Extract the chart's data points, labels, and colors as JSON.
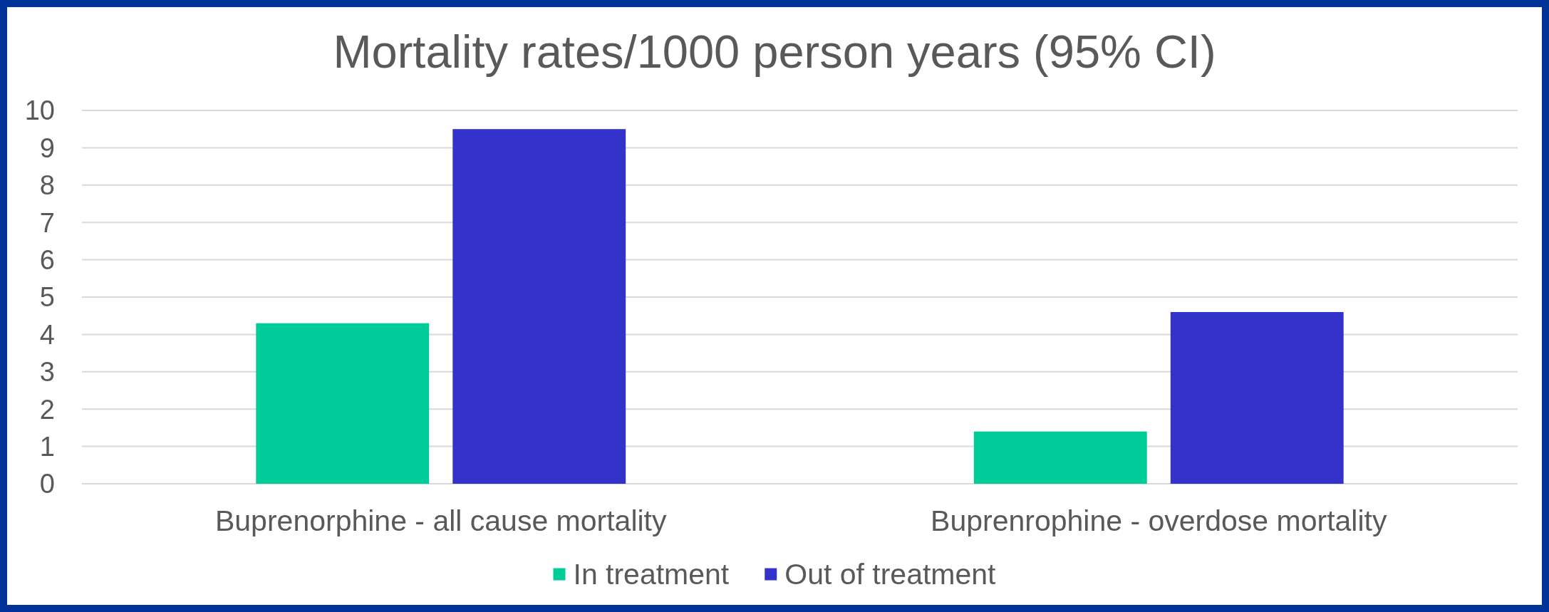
{
  "chart_data": {
    "type": "bar",
    "title": "Mortality rates/1000 person years (95% CI)",
    "categories": [
      "Buprenorphine - all cause mortality",
      "Buprenrophine - overdose mortality"
    ],
    "series": [
      {
        "name": "In treatment",
        "color": "#00cc99",
        "values": [
          4.3,
          1.4
        ]
      },
      {
        "name": "Out of treatment",
        "color": "#3333cc",
        "values": [
          9.5,
          4.6
        ]
      }
    ],
    "ylim": [
      0,
      10
    ],
    "yticks": [
      0,
      1,
      2,
      3,
      4,
      5,
      6,
      7,
      8,
      9,
      10
    ],
    "grid": "y",
    "legend": "bottom"
  }
}
